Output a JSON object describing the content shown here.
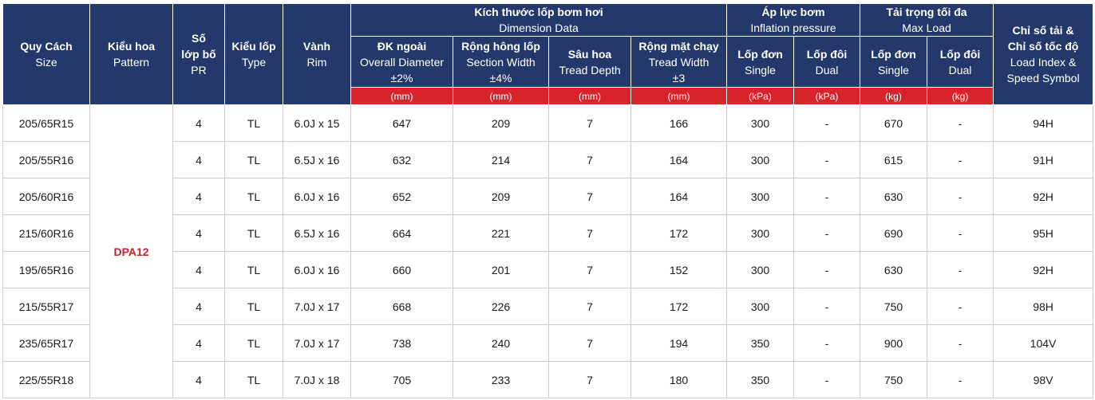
{
  "headers": {
    "size": {
      "vi": "Quy Cách",
      "en": "Size"
    },
    "pattern": {
      "vi": "Kiểu hoa",
      "en": "Pattern"
    },
    "pr": {
      "vi1": "Số",
      "vi2": "lớp bố",
      "en": "PR"
    },
    "type": {
      "vi": "Kiểu lốp",
      "en": "Type"
    },
    "rim": {
      "vi": "Vành",
      "en": "Rim"
    },
    "dimension": {
      "vi": "Kích thước lốp bơm hơi",
      "en": "Dimension Data"
    },
    "overall_diameter": {
      "vi": "ĐK ngoài",
      "en": "Overall Diameter",
      "tol": "±2%",
      "unit": "(mm)"
    },
    "section_width": {
      "vi": "Rộng hông lốp",
      "en": "Section Width",
      "tol": "±4%",
      "unit": "(mm)"
    },
    "tread_depth": {
      "vi": "Sâu hoa",
      "en": "Tread Depth",
      "unit": "(mm)"
    },
    "tread_width": {
      "vi": "Rộng mặt chạy",
      "en": "Tread Width",
      "tol": "±3",
      "unit": "(mm)"
    },
    "inflation": {
      "vi": "Áp lực bơm",
      "en": "Inflation pressure"
    },
    "inflation_single": {
      "vi": "Lốp đơn",
      "en": "Single",
      "unit": "(kPa)"
    },
    "inflation_dual": {
      "vi": "Lốp đôi",
      "en": "Dual",
      "unit": "(kPa)"
    },
    "max_load": {
      "vi": "Tải trọng tối đa",
      "en": "Max Load"
    },
    "load_single": {
      "vi": "Lốp đơn",
      "en": "Single",
      "unit": "(kg)"
    },
    "load_dual": {
      "vi": "Lốp đôi",
      "en": "Dual",
      "unit": "(kg)"
    },
    "load_index": {
      "vi1": "Chỉ số tải &",
      "vi2": "Chỉ số tốc độ",
      "en1": "Load Index &",
      "en2": "Speed Symbol"
    }
  },
  "pattern": "DPA12",
  "rows": [
    {
      "size": "205/65R15",
      "pr": "4",
      "type": "TL",
      "rim": "6.0J x 15",
      "od": "647",
      "sw": "209",
      "td": "7",
      "tw": "166",
      "ps": "300",
      "pd": "-",
      "ls": "670",
      "ld": "-",
      "li": "94H"
    },
    {
      "size": "205/55R16",
      "pr": "4",
      "type": "TL",
      "rim": "6.5J x 16",
      "od": "632",
      "sw": "214",
      "td": "7",
      "tw": "164",
      "ps": "300",
      "pd": "-",
      "ls": "615",
      "ld": "-",
      "li": "91H"
    },
    {
      "size": "205/60R16",
      "pr": "4",
      "type": "TL",
      "rim": "6.0J x 16",
      "od": "652",
      "sw": "209",
      "td": "7",
      "tw": "164",
      "ps": "300",
      "pd": "-",
      "ls": "630",
      "ld": "-",
      "li": "92H"
    },
    {
      "size": "215/60R16",
      "pr": "4",
      "type": "TL",
      "rim": "6.5J x 16",
      "od": "664",
      "sw": "221",
      "td": "7",
      "tw": "172",
      "ps": "300",
      "pd": "-",
      "ls": "690",
      "ld": "-",
      "li": "95H"
    },
    {
      "size": "195/65R16",
      "pr": "4",
      "type": "TL",
      "rim": "6.0J x 16",
      "od": "660",
      "sw": "201",
      "td": "7",
      "tw": "152",
      "ps": "300",
      "pd": "-",
      "ls": "630",
      "ld": "-",
      "li": "92H"
    },
    {
      "size": "215/55R17",
      "pr": "4",
      "type": "TL",
      "rim": "7.0J x 17",
      "od": "668",
      "sw": "226",
      "td": "7",
      "tw": "172",
      "ps": "300",
      "pd": "-",
      "ls": "750",
      "ld": "-",
      "li": "98H"
    },
    {
      "size": "235/65R17",
      "pr": "4",
      "type": "TL",
      "rim": "7.0J x 17",
      "od": "738",
      "sw": "240",
      "td": "7",
      "tw": "194",
      "ps": "350",
      "pd": "-",
      "ls": "900",
      "ld": "-",
      "li": "104V"
    },
    {
      "size": "225/55R18",
      "pr": "4",
      "type": "TL",
      "rim": "7.0J x 18",
      "od": "705",
      "sw": "233",
      "td": "7",
      "tw": "180",
      "ps": "350",
      "pd": "-",
      "ls": "750",
      "ld": "-",
      "li": "98V"
    }
  ]
}
